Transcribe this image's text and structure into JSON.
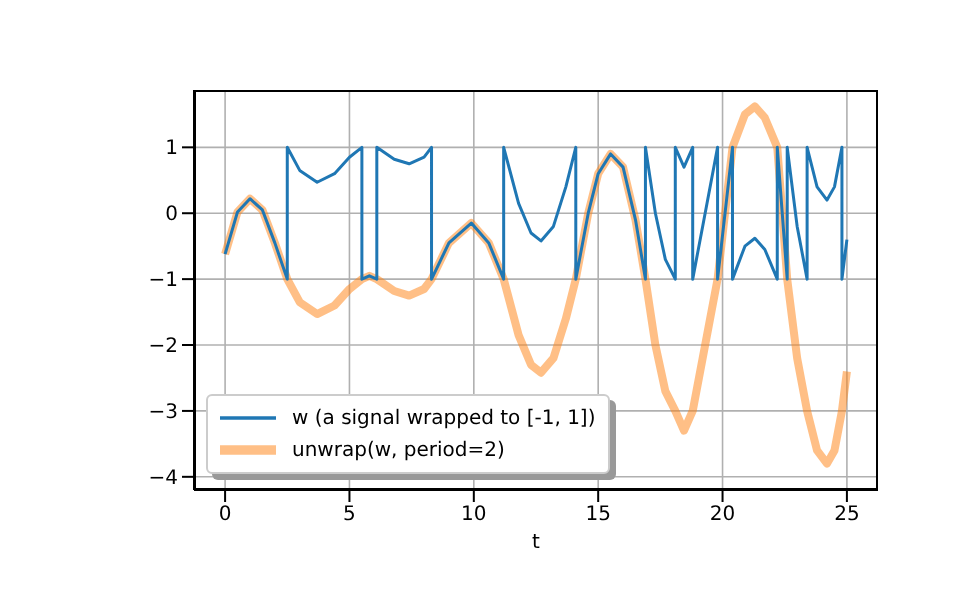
{
  "chart_data": {
    "type": "line",
    "xlabel": "t",
    "xlim": [
      -1.25,
      26.25
    ],
    "ylim": [
      -4.2,
      1.87
    ],
    "xticks": [
      0,
      5,
      10,
      15,
      20,
      25
    ],
    "yticks": [
      -4,
      -3,
      -2,
      -1,
      0,
      1
    ],
    "grid": true,
    "legend": "bottom left",
    "line_style": "solid",
    "marker": "none",
    "series": [
      {
        "name": "w (a signal wrapped to [-1, 1])",
        "color": "#1f77b4",
        "x": [
          0,
          0.5,
          1,
          1.5,
          2,
          2.5,
          2.5,
          3,
          3.7,
          4.4,
          5,
          5.5,
          5.5,
          5.8,
          6.1,
          6.1,
          6.8,
          7.4,
          8,
          8.3,
          8.3,
          9,
          9.9,
          10.6,
          11.2,
          11.2,
          11.8,
          12.3,
          12.7,
          13.2,
          13.7,
          14.1,
          14.1,
          14.6,
          15,
          15.5,
          16,
          16.5,
          16.9,
          16.9,
          17.3,
          17.7,
          18.1,
          18.1,
          18.45,
          18.8,
          18.8,
          19.2,
          19.8,
          19.8,
          20.4,
          20.4,
          20.9,
          21.3,
          21.7,
          22.2,
          22.2,
          22.6,
          22.6,
          23,
          23.4,
          23.4,
          23.8,
          24.2,
          24.5,
          24.8,
          24.8,
          25
        ],
        "values": [
          -0.62,
          0.02,
          0.22,
          0.05,
          -0.45,
          -1,
          1,
          0.65,
          0.47,
          0.6,
          0.85,
          1,
          -1,
          -0.95,
          -1,
          1,
          0.82,
          0.75,
          0.85,
          1,
          -1,
          -0.45,
          -0.15,
          -0.45,
          -1,
          1,
          0.15,
          -0.3,
          -0.42,
          -0.2,
          0.4,
          1,
          -1,
          0,
          0.6,
          0.9,
          0.7,
          -0.1,
          -1,
          1,
          0,
          -0.7,
          -1,
          1,
          0.7,
          1,
          -1,
          -0.2,
          1,
          -1,
          1,
          -1,
          -0.5,
          -0.38,
          -0.55,
          -1,
          1,
          -1,
          1,
          -0.2,
          -1,
          1,
          0.4,
          0.2,
          0.4,
          1,
          -1,
          -0.4
        ]
      },
      {
        "name": "unwrap(w, period=2)",
        "color": "#ff7f0e",
        "x": [
          0,
          0.5,
          1,
          1.5,
          2,
          2.5,
          3,
          3.7,
          4.4,
          5,
          5.5,
          5.8,
          6.1,
          6.8,
          7.4,
          8,
          8.3,
          9,
          9.9,
          10.6,
          11.2,
          11.8,
          12.3,
          12.7,
          13.2,
          13.7,
          14.1,
          14.6,
          15,
          15.5,
          16,
          16.5,
          16.9,
          17.3,
          17.7,
          18.1,
          18.45,
          18.8,
          19.2,
          19.8,
          20.4,
          20.9,
          21.3,
          21.7,
          22.2,
          22.6,
          23,
          23.4,
          23.8,
          24.2,
          24.5,
          24.8,
          25
        ],
        "values": [
          -0.62,
          0.02,
          0.22,
          0.05,
          -0.45,
          -1,
          -1.35,
          -1.53,
          -1.4,
          -1.15,
          -1,
          -0.95,
          -1,
          -1.18,
          -1.25,
          -1.15,
          -1,
          -0.45,
          -0.15,
          -0.45,
          -1,
          -1.85,
          -2.3,
          -2.42,
          -2.2,
          -1.6,
          -1,
          0,
          0.6,
          0.9,
          0.7,
          -0.1,
          -1,
          -2,
          -2.7,
          -3,
          -3.3,
          -3,
          -2.2,
          -1,
          1,
          1.5,
          1.62,
          1.45,
          1,
          -1,
          -2.2,
          -3,
          -3.6,
          -3.8,
          -3.6,
          -3,
          -2.4
        ]
      }
    ]
  }
}
